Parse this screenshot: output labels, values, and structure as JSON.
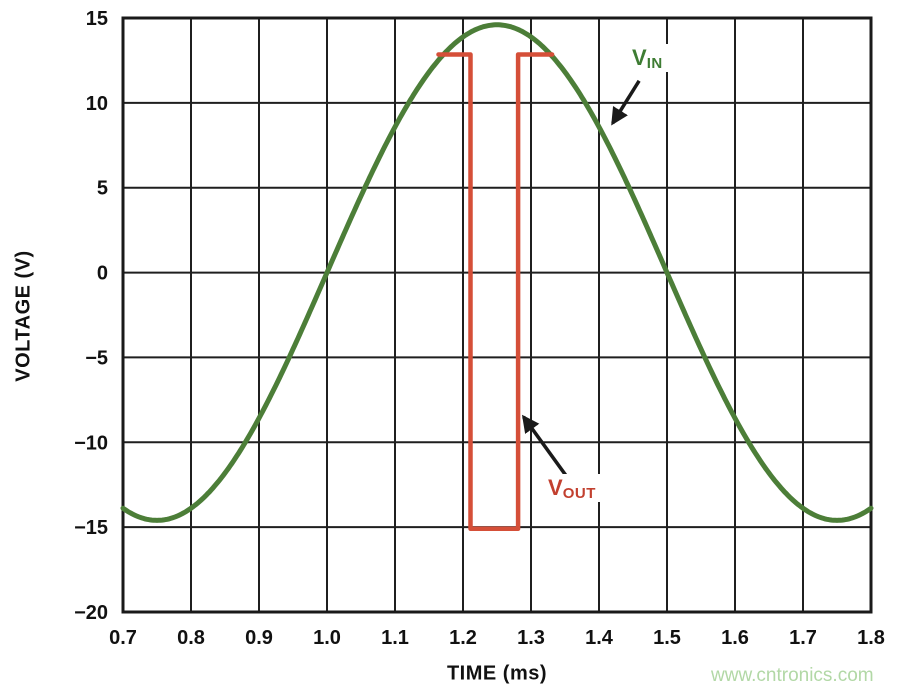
{
  "page": {
    "background": "#ffffff",
    "watermark": {
      "text": "www.cntronics.com",
      "color": "#b2d8a6"
    }
  },
  "chart_data": {
    "type": "line",
    "title": "",
    "xlabel": "TIME (ms)",
    "ylabel": "VOLTAGE (V)",
    "xlim": [
      0.7,
      1.8
    ],
    "ylim": [
      -20,
      15
    ],
    "grid": true,
    "grid_color": "#1f1f1f",
    "axis_color": "#1a1a1a",
    "arrow_color": "#1a1a1a",
    "x_tick_values": [
      0.7,
      0.8,
      0.9,
      1.0,
      1.1,
      1.2,
      1.3,
      1.4,
      1.5,
      1.6,
      1.7,
      1.8
    ],
    "x_tick_labels": [
      "0.7",
      "0.8",
      "0.9",
      "1.0",
      "1.1",
      "1.2",
      "1.3",
      "1.4",
      "1.5",
      "1.6",
      "1.7",
      "1.8"
    ],
    "y_tick_values": [
      15,
      10,
      5,
      0,
      -5,
      -10,
      -15,
      -20
    ],
    "y_tick_labels": [
      "15",
      "10",
      "5",
      "0",
      "−5",
      "−10",
      "−15",
      "−20"
    ],
    "series": [
      {
        "name": "VIN",
        "label": {
          "main": "V",
          "sub": "IN"
        },
        "color": "#4c7e38",
        "shape": "sine",
        "amplitude_v": 14.6,
        "period_ms": 1.0,
        "rising_zero_crossing_ms": 1.0,
        "keypoints": [
          [
            0.75,
            -14.6
          ],
          [
            1.0,
            0
          ],
          [
            1.25,
            14.6
          ],
          [
            1.5,
            0
          ],
          [
            1.75,
            -14.6
          ]
        ]
      },
      {
        "name": "VOUT",
        "label": {
          "main": "V",
          "sub": "OUT"
        },
        "color": "#d54f38",
        "shape": "polyline",
        "points": [
          [
            1.164,
            12.85
          ],
          [
            1.211,
            12.85
          ],
          [
            1.211,
            -15.1
          ],
          [
            1.281,
            -15.1
          ],
          [
            1.281,
            12.85
          ],
          [
            1.331,
            12.85
          ]
        ]
      }
    ],
    "annotations": [
      {
        "for": "VIN",
        "text_color": "#3e7c33",
        "arrow": {
          "from": [
            1.459,
            11.3
          ],
          "to": [
            1.42,
            8.8
          ]
        }
      },
      {
        "for": "VOUT",
        "text_color": "#c2402f",
        "arrow": {
          "from": [
            1.354,
            -12.1
          ],
          "to": [
            1.289,
            -8.5
          ]
        }
      }
    ]
  }
}
